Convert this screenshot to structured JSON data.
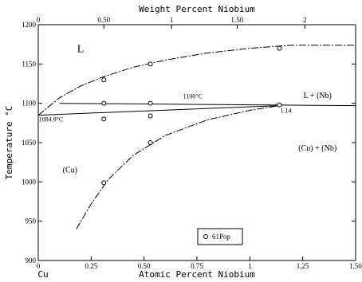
{
  "chart_data": {
    "type": "scatter",
    "title": "",
    "xlabel": "Atomic Percent Niobium",
    "ylabel": "Temperature °C",
    "top_xlabel": "Weight Percent Niobium",
    "xlim": [
      0,
      1.5
    ],
    "ylim": [
      900,
      1200
    ],
    "x_ticks": [
      {
        "value": 0,
        "label": "0"
      },
      {
        "value": 0.25,
        "label": "0.25"
      },
      {
        "value": 0.5,
        "label": "0.50"
      },
      {
        "value": 0.75,
        "label": "0.75"
      },
      {
        "value": 1,
        "label": "1"
      },
      {
        "value": 1.25,
        "label": "1.25"
      },
      {
        "value": 1.5,
        "label": "1.50"
      }
    ],
    "y_ticks": [
      {
        "value": 900,
        "label": "900"
      },
      {
        "value": 950,
        "label": "950"
      },
      {
        "value": 1000,
        "label": "1000"
      },
      {
        "value": 1050,
        "label": "1050"
      },
      {
        "value": 1100,
        "label": "1100"
      },
      {
        "value": 1150,
        "label": "1150"
      },
      {
        "value": 1200,
        "label": "1200"
      }
    ],
    "top_ticks": [
      {
        "pos": 0,
        "label": "0"
      },
      {
        "pos": 0.31,
        "label": "0.50"
      },
      {
        "pos": 0.63,
        "label": "1"
      },
      {
        "pos": 0.94,
        "label": "1.50"
      },
      {
        "pos": 1.26,
        "label": "2"
      }
    ],
    "left_label": "Cu",
    "grid": false,
    "series": [
      {
        "name": "61Pop",
        "marker": "open-circle",
        "points": [
          [
            0.31,
            1130
          ],
          [
            0.53,
            1150
          ],
          [
            1.14,
            1170
          ],
          [
            0.31,
            1100
          ],
          [
            0.53,
            1100
          ],
          [
            0.31,
            1080
          ],
          [
            0.53,
            1084
          ],
          [
            0.53,
            1050
          ],
          [
            0.31,
            999
          ],
          [
            1.14,
            1098
          ]
        ]
      }
    ],
    "lines": [
      {
        "id": "liquidus",
        "style": "dash",
        "points": [
          [
            0,
            1084.9
          ],
          [
            0.1,
            1107
          ],
          [
            0.2,
            1122
          ],
          [
            0.3,
            1133
          ],
          [
            0.45,
            1146
          ],
          [
            0.6,
            1155
          ],
          [
            0.8,
            1164
          ],
          [
            1.0,
            1170
          ],
          [
            1.2,
            1174
          ],
          [
            1.5,
            1174
          ]
        ]
      },
      {
        "id": "eutectic",
        "style": "solid",
        "points": [
          [
            0.1,
            1100
          ],
          [
            1.5,
            1097
          ]
        ]
      },
      {
        "id": "lower-liquidus",
        "style": "solid",
        "points": [
          [
            0,
            1084.9
          ],
          [
            1.14,
            1097
          ]
        ]
      },
      {
        "id": "solvus",
        "style": "dash",
        "points": [
          [
            0.18,
            940
          ],
          [
            0.25,
            972
          ],
          [
            0.33,
            1003
          ],
          [
            0.45,
            1034
          ],
          [
            0.6,
            1059
          ],
          [
            0.8,
            1079
          ],
          [
            1.0,
            1091
          ],
          [
            1.14,
            1097
          ]
        ]
      }
    ],
    "annotations": [
      {
        "id": "region-l",
        "text": "L",
        "x": 0.2,
        "y": 1165,
        "size": 14
      },
      {
        "id": "region-l-nb",
        "text": "L + (Nb)",
        "x": 1.32,
        "y": 1107,
        "size": 10
      },
      {
        "id": "temp-1100",
        "text": "1100°C",
        "x": 0.73,
        "y": 1106,
        "size": 8
      },
      {
        "id": "temp-1084",
        "text": "1084.9°C",
        "x": 0.06,
        "y": 1077,
        "size": 8
      },
      {
        "id": "label-114",
        "text": "1.14",
        "x": 1.17,
        "y": 1088,
        "size": 8
      },
      {
        "id": "region-cu",
        "text": "(Cu)",
        "x": 0.15,
        "y": 1012,
        "size": 10
      },
      {
        "id": "region-cu-nb",
        "text": "(Cu) + (Nb)",
        "x": 1.32,
        "y": 1040,
        "size": 10
      }
    ],
    "legend": {
      "placement": "bottom-center",
      "label": "61Pop"
    }
  }
}
